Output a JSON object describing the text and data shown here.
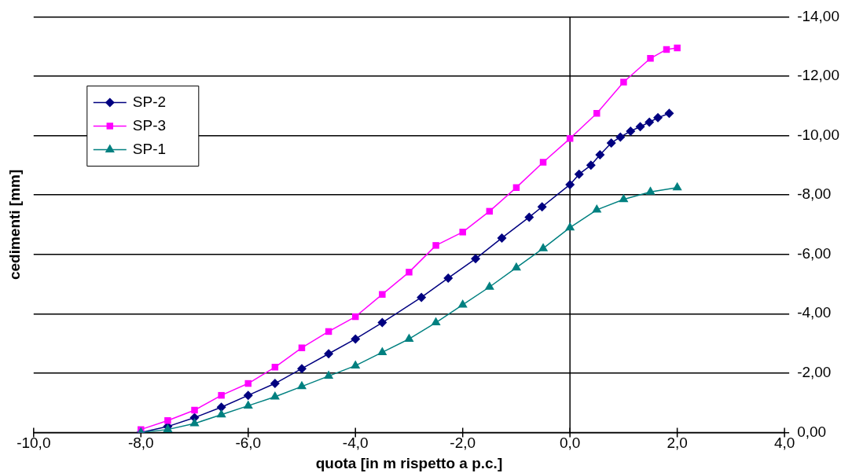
{
  "chart_data": {
    "type": "line",
    "xlabel": "quota [in m rispetto a p.c.]",
    "ylabel": "cedimenti [mm]",
    "xlim": [
      -10,
      4
    ],
    "xticks": [
      {
        "value": -10,
        "label": "-10,0"
      },
      {
        "value": -8,
        "label": "-8,0"
      },
      {
        "value": -6,
        "label": "-6,0"
      },
      {
        "value": -4,
        "label": "-4,0"
      },
      {
        "value": -2,
        "label": "-2,0"
      },
      {
        "value": 0,
        "label": "0,0"
      },
      {
        "value": 2,
        "label": "2,0"
      },
      {
        "value": 4,
        "label": "4,0"
      }
    ],
    "ylim": [
      0,
      -14
    ],
    "yticks": [
      {
        "value": 0,
        "label": "0,00"
      },
      {
        "value": -2,
        "label": "-2,00"
      },
      {
        "value": -4,
        "label": "-4,00"
      },
      {
        "value": -6,
        "label": "-6,00"
      },
      {
        "value": -8,
        "label": "-8,00"
      },
      {
        "value": -10,
        "label": "-10,00"
      },
      {
        "value": -12,
        "label": "-12,00"
      },
      {
        "value": -14,
        "label": "-14,00"
      }
    ],
    "grid": "y",
    "legend": "top left",
    "line_style": "solid",
    "ref_lines": [
      {
        "axis": "x",
        "value": 0,
        "color": "#000000"
      }
    ],
    "series": [
      {
        "name": "SP-2",
        "color": "#000080",
        "marker": "diamond",
        "x": [
          -8,
          -7.5,
          -7,
          -6.5,
          -6,
          -5.5,
          -5,
          -4.5,
          -4,
          -3.5,
          -2.77,
          -2.27,
          -1.76,
          -1.27,
          -0.76,
          -0.52,
          0,
          0.17,
          0.39,
          0.56,
          0.77,
          0.94,
          1.13,
          1.31,
          1.48,
          1.64,
          1.85
        ],
        "values": [
          0,
          -0.2,
          -0.5,
          -0.85,
          -1.25,
          -1.65,
          -2.15,
          -2.65,
          -3.15,
          -3.7,
          -4.55,
          -5.2,
          -5.85,
          -6.55,
          -7.25,
          -7.6,
          -8.35,
          -8.7,
          -9.0,
          -9.35,
          -9.75,
          -9.95,
          -10.15,
          -10.3,
          -10.45,
          -10.6,
          -10.75
        ]
      },
      {
        "name": "SP-3",
        "color": "#ff00ff",
        "marker": "square",
        "x": [
          -8,
          -7.5,
          -7,
          -6.5,
          -6,
          -5.5,
          -5,
          -4.5,
          -4,
          -3.5,
          -3,
          -2.5,
          -2,
          -1.5,
          -1,
          -0.5,
          0,
          0.5,
          1,
          1.5,
          1.8,
          2
        ],
        "values": [
          -0.1,
          -0.4,
          -0.75,
          -1.25,
          -1.65,
          -2.2,
          -2.85,
          -3.4,
          -3.9,
          -4.65,
          -5.4,
          -6.3,
          -6.75,
          -7.45,
          -8.25,
          -9.1,
          -9.9,
          -10.75,
          -11.8,
          -12.6,
          -12.9,
          -12.95
        ]
      },
      {
        "name": "SP-1",
        "color": "#008080",
        "marker": "triangle",
        "x": [
          -8,
          -7.5,
          -7,
          -6.5,
          -6,
          -5.5,
          -5,
          -4.5,
          -4,
          -3.5,
          -3,
          -2.5,
          -2,
          -1.5,
          -1,
          -0.5,
          0,
          0.5,
          1,
          1.5,
          2
        ],
        "values": [
          0,
          -0.1,
          -0.3,
          -0.6,
          -0.9,
          -1.2,
          -1.55,
          -1.9,
          -2.25,
          -2.7,
          -3.15,
          -3.7,
          -4.3,
          -4.9,
          -5.55,
          -6.2,
          -6.9,
          -7.5,
          -7.85,
          -8.1,
          -8.25
        ]
      }
    ]
  }
}
